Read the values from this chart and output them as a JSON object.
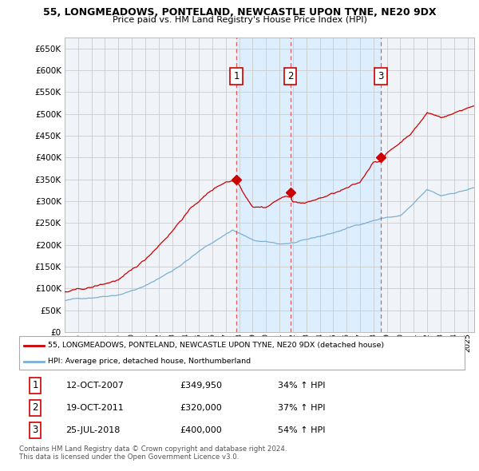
{
  "title1": "55, LONGMEADOWS, PONTELAND, NEWCASTLE UPON TYNE, NE20 9DX",
  "title2": "Price paid vs. HM Land Registry's House Price Index (HPI)",
  "legend_line1": "55, LONGMEADOWS, PONTELAND, NEWCASTLE UPON TYNE, NE20 9DX (detached house)",
  "legend_line2": "HPI: Average price, detached house, Northumberland",
  "sale1_date": "12-OCT-2007",
  "sale1_price": "£349,950",
  "sale1_hpi": "34% ↑ HPI",
  "sale1_year": 2007.79,
  "sale1_value": 349950,
  "sale2_date": "19-OCT-2011",
  "sale2_price": "£320,000",
  "sale2_hpi": "37% ↑ HPI",
  "sale2_year": 2011.8,
  "sale2_value": 320000,
  "sale3_date": "25-JUL-2018",
  "sale3_price": "£400,000",
  "sale3_hpi": "54% ↑ HPI",
  "sale3_year": 2018.56,
  "sale3_value": 400000,
  "line_color": "#cc0000",
  "hpi_color": "#7ab0d4",
  "vline_color": "#dd4444",
  "shade_color": "#ddeeff",
  "background_color": "#f0f4f8",
  "grid_color": "#cccccc",
  "ylim_min": 0,
  "ylim_max": 675000,
  "xmin": 1995.0,
  "xmax": 2025.5,
  "footer": "Contains HM Land Registry data © Crown copyright and database right 2024.\nThis data is licensed under the Open Government Licence v3.0."
}
